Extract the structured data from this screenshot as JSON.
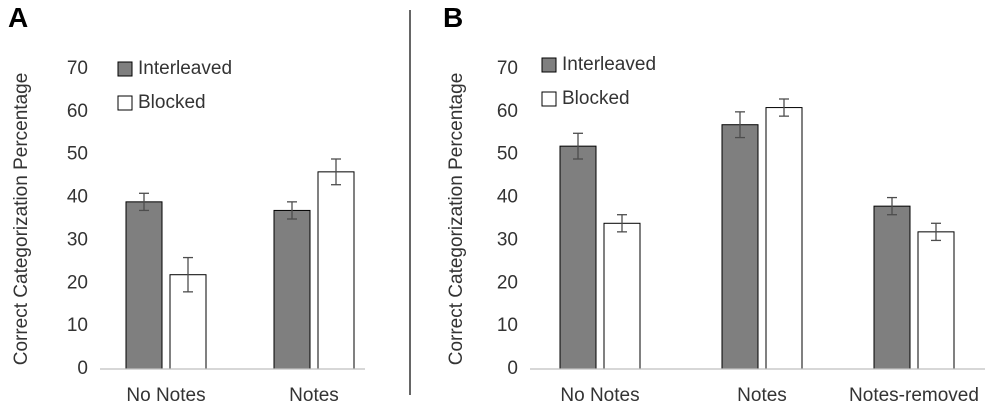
{
  "colors": {
    "interleaved": "#7f7f7f",
    "blocked": "#ffffff",
    "bar_edge": "#000000",
    "axis": "#bfbfbf",
    "divider": "#000000",
    "text": "#333333",
    "error_bar": "#4d4d4d"
  },
  "chart_data": [
    {
      "type": "bar",
      "panel_label": "A",
      "categories": [
        "No Notes",
        "Notes"
      ],
      "series": [
        {
          "name": "Interleaved",
          "values": [
            39,
            37
          ],
          "errors": [
            2,
            2
          ]
        },
        {
          "name": "Blocked",
          "values": [
            22,
            46
          ],
          "errors": [
            4,
            3
          ]
        }
      ],
      "ylabel": "Correct Categorization Percentage",
      "xlabel": "",
      "ylim": [
        0,
        70
      ],
      "yticks": [
        "0",
        "10",
        "20",
        "30",
        "40",
        "50",
        "60",
        "70"
      ],
      "legend": "top-left",
      "grid": false
    },
    {
      "type": "bar",
      "panel_label": "B",
      "categories": [
        "No Notes",
        "Notes",
        "Notes-removed"
      ],
      "series": [
        {
          "name": "Interleaved",
          "values": [
            52,
            57,
            38
          ],
          "errors": [
            3,
            3,
            2
          ]
        },
        {
          "name": "Blocked",
          "values": [
            34,
            61,
            32
          ],
          "errors": [
            2,
            2,
            2
          ]
        }
      ],
      "ylabel": "Correct Categorization Percentage",
      "xlabel": "",
      "ylim": [
        0,
        70
      ],
      "yticks": [
        "0",
        "10",
        "20",
        "30",
        "40",
        "50",
        "60",
        "70"
      ],
      "legend": "top-left",
      "grid": false
    }
  ]
}
